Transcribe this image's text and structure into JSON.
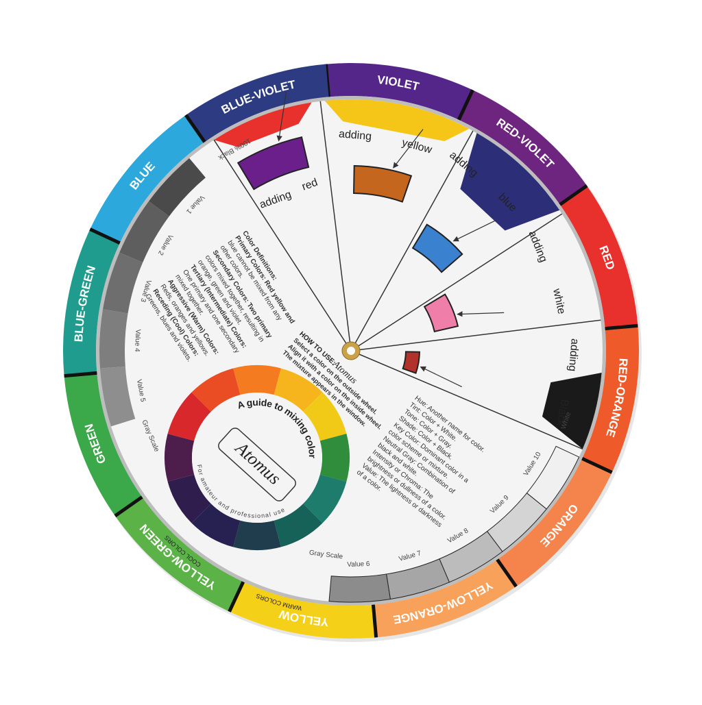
{
  "wheel": {
    "hues": [
      "VIOLET",
      "RED-VIOLET",
      "RED",
      "RED-ORANGE",
      "ORANGE",
      "YELLOW-ORANGE",
      "YELLOW",
      "YELLOW-GREEN",
      "GREEN",
      "BLUE-GREEN",
      "BLUE",
      "BLUE-VIOLET"
    ],
    "warm_label": "WARM COLORS",
    "cool_label": "COOL COLORS",
    "windows": [
      {
        "adding": "adding",
        "color": "red"
      },
      {
        "adding": "adding",
        "color": "yellow"
      },
      {
        "adding": "adding",
        "color": "blue"
      },
      {
        "adding": "adding",
        "color": "white"
      },
      {
        "adding": "adding",
        "color": "Black"
      }
    ],
    "gray_scale_left": {
      "title": "Gray Scale",
      "top": "100% Black",
      "values": [
        "Value 1",
        "Value 2",
        "Value 3",
        "Value 4",
        "Value 5"
      ]
    },
    "gray_scale_right": {
      "title": "Gray Scale",
      "top": "White",
      "values": [
        "Value 10",
        "Value 9",
        "Value 8",
        "Value 7",
        "Value 6"
      ]
    },
    "definitions": [
      "Color Definitions:",
      "Primary Colors: Red yellow and",
      "blue cannot be mixed from any",
      "other colors.",
      "Secondary Colors: Two primary",
      "colors mixed together, resulting in",
      "orange, green and violet.",
      "Tertiary (Intermediate) Colors:",
      "One primary and one secondary",
      "mixed together.",
      "Aggressive (Warm) Colors:",
      "Reds, oranges and yellows.",
      "Receding (Cool) Colors:",
      "Greens, blues and violets."
    ],
    "how_to_use": {
      "heading": "HOW TO USE:",
      "brand": "Atomus",
      "lines": [
        "Select a color on the outside wheel.",
        "Align it with a color on the inside wheel.",
        "The mixture appears in the window."
      ]
    },
    "terms": [
      "Hue: Another name for color.",
      "Tint: Color + White.",
      "Tone: Color + Gray.",
      "Shade: Color + Black.",
      "Key Color: Dominant color in a",
      "color scheme or mixture.",
      "Neutral Gray: Combination of",
      "black and white.",
      "Intensity or Chroma: The",
      "brightness or dullness of a color.",
      "Value: The lightness or darkness",
      "of a color."
    ],
    "guide": {
      "title": "A guide to mixing color",
      "brand": "Atomus",
      "subtitle": "For amateur and professional use"
    }
  }
}
